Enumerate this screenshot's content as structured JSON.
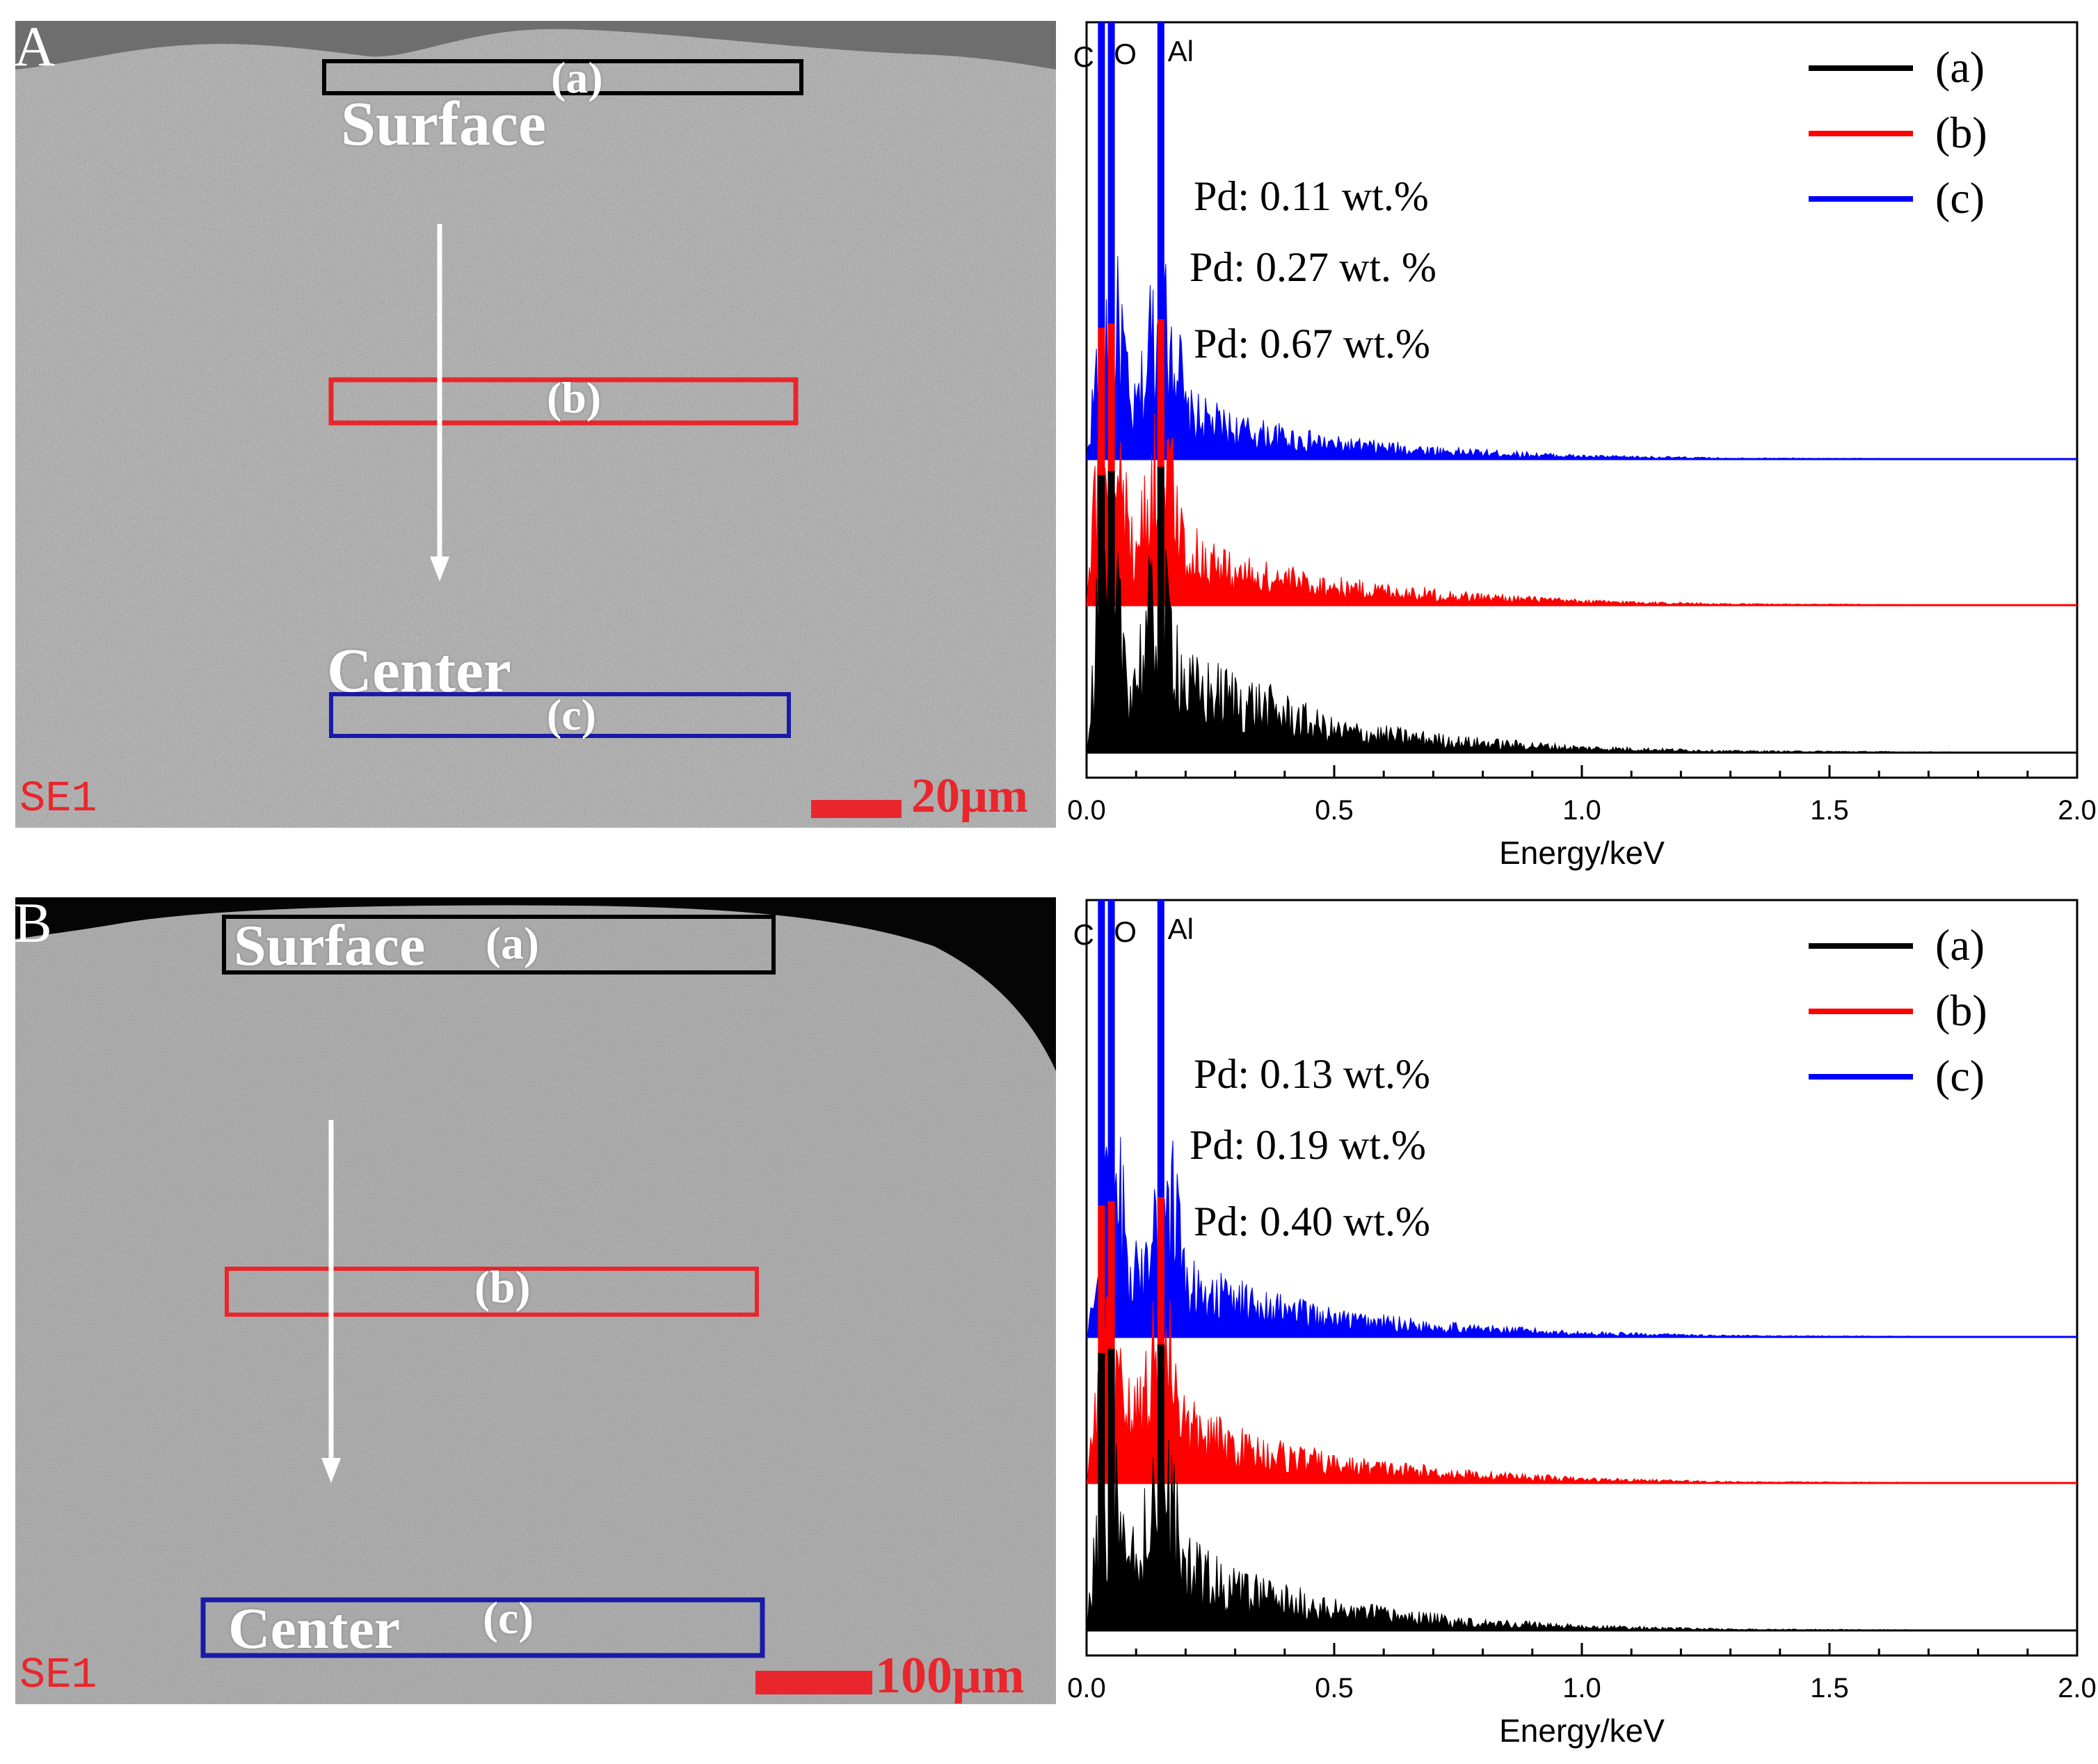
{
  "figure": {
    "panels": [
      {
        "id": "A",
        "letter": "A",
        "sem": {
          "surface_label": "Surface",
          "center_label": "Center",
          "region_a": "(a)",
          "region_b": "(b)",
          "region_c": "(c)",
          "detector_label": "SE1",
          "scale_label": "20μm",
          "colors": {
            "a": "#000000",
            "b": "#e8262c",
            "c": "#1a1aa8",
            "scale": "#e8262c"
          }
        }
      },
      {
        "id": "B",
        "letter": "B",
        "sem": {
          "surface_label": "Surface",
          "center_label": "Center",
          "region_a": "(a)",
          "region_b": "(b)",
          "region_c": "(c)",
          "detector_label": "SE1",
          "scale_label": "100μm",
          "colors": {
            "a": "#000000",
            "b": "#e8262c",
            "c": "#1a1aa8",
            "scale": "#e8262c"
          }
        }
      }
    ]
  },
  "chart_data": [
    {
      "type": "line",
      "panel": "A",
      "title": "",
      "xlabel": "Energy/keV",
      "ylabel": "",
      "xlim": [
        0,
        2
      ],
      "x_ticks": [
        "0.0",
        "0.5",
        "1.0",
        "1.5",
        "2.0"
      ],
      "peak_labels": [
        "C",
        "O",
        "Al"
      ],
      "legend": [
        "(a)",
        "(b)",
        "(c)"
      ],
      "legend_position": "top-right",
      "series": [
        {
          "name": "(c)",
          "color": "#0000ff",
          "annotation": "Pd: 0.11 wt.%",
          "x": [
            0.0,
            0.03,
            0.05,
            0.09,
            0.12,
            0.15,
            0.2,
            0.3,
            0.5,
            0.75,
            1.0,
            1.3,
            2.0
          ],
          "values": [
            0,
            0.7,
            1.2,
            0.2,
            0.45,
            1.3,
            0.25,
            0.16,
            0.08,
            0.04,
            0.015,
            0.005,
            0
          ]
        },
        {
          "name": "(b)",
          "color": "#ff0000",
          "annotation": "Pd: 0.27 wt. %",
          "x": [
            0.0,
            0.03,
            0.05,
            0.09,
            0.12,
            0.15,
            0.2,
            0.3,
            0.5,
            0.75,
            1.0,
            1.3,
            2.0
          ],
          "values": [
            0,
            0.9,
            1.0,
            0.3,
            0.5,
            0.9,
            0.3,
            0.18,
            0.1,
            0.05,
            0.02,
            0.006,
            0
          ]
        },
        {
          "name": "(a)",
          "color": "#000000",
          "annotation": "Pd: 0.67 wt.%",
          "x": [
            0.0,
            0.03,
            0.05,
            0.09,
            0.12,
            0.15,
            0.2,
            0.3,
            0.5,
            0.75,
            1.0,
            1.3,
            2.0
          ],
          "values": [
            0,
            1.0,
            1.0,
            0.35,
            0.6,
            1.0,
            0.35,
            0.3,
            0.12,
            0.06,
            0.025,
            0.008,
            0
          ]
        }
      ]
    },
    {
      "type": "line",
      "panel": "B",
      "title": "",
      "xlabel": "Energy/keV",
      "ylabel": "",
      "xlim": [
        0,
        2
      ],
      "x_ticks": [
        "0.0",
        "0.5",
        "1.0",
        "1.5",
        "2.0"
      ],
      "peak_labels": [
        "C",
        "O",
        "Al"
      ],
      "legend": [
        "(a)",
        "(b)",
        "(c)"
      ],
      "legend_position": "top-right",
      "series": [
        {
          "name": "(c)",
          "color": "#0000ff",
          "annotation": "Pd: 0.13 wt.%",
          "x": [
            0.0,
            0.03,
            0.05,
            0.09,
            0.12,
            0.15,
            0.2,
            0.3,
            0.5,
            0.75,
            1.0,
            1.3,
            2.0
          ],
          "values": [
            0,
            0.4,
            1.3,
            0.25,
            0.5,
            1.3,
            0.28,
            0.2,
            0.1,
            0.05,
            0.02,
            0.006,
            0
          ]
        },
        {
          "name": "(b)",
          "color": "#ff0000",
          "annotation": "Pd: 0.19 wt.%",
          "x": [
            0.0,
            0.03,
            0.05,
            0.09,
            0.12,
            0.15,
            0.2,
            0.3,
            0.5,
            0.75,
            1.0,
            1.3,
            2.0
          ],
          "values": [
            0,
            0.6,
            1.1,
            0.3,
            0.55,
            1.1,
            0.3,
            0.2,
            0.1,
            0.05,
            0.02,
            0.006,
            0
          ]
        },
        {
          "name": "(a)",
          "color": "#000000",
          "annotation": "Pd: 0.40 wt.%",
          "x": [
            0.0,
            0.03,
            0.05,
            0.09,
            0.12,
            0.15,
            0.2,
            0.3,
            0.5,
            0.75,
            1.0,
            1.3,
            2.0
          ],
          "values": [
            0,
            0.7,
            0.9,
            0.35,
            0.6,
            0.95,
            0.33,
            0.22,
            0.11,
            0.05,
            0.02,
            0.006,
            0
          ]
        }
      ]
    }
  ]
}
